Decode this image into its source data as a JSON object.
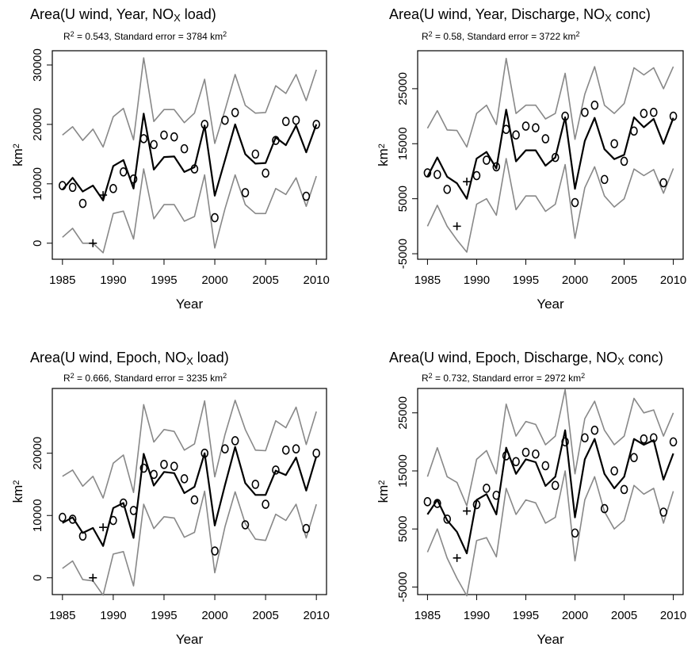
{
  "chart_data": [
    {
      "type": "line",
      "title": [
        "Area(U wind, Year, NO",
        "X",
        " load)"
      ],
      "subtitle": [
        "R",
        "2",
        " = 0.543, Standard error = 3784 km",
        "2"
      ],
      "xlabel": "Year",
      "ylabel": [
        "km",
        "2"
      ],
      "x": [
        1985,
        1986,
        1987,
        1988,
        1989,
        1990,
        1991,
        1992,
        1993,
        1994,
        1995,
        1996,
        1997,
        1998,
        1999,
        2000,
        2001,
        2002,
        2003,
        2004,
        2005,
        2006,
        2007,
        2008,
        2009,
        2010
      ],
      "xlim": [
        1984,
        2011
      ],
      "xticks": [
        1985,
        1990,
        1995,
        2000,
        2005,
        2010
      ],
      "ylim": [
        -2700,
        32400
      ],
      "yticks": [
        0,
        10000,
        20000,
        30000
      ],
      "series": [
        {
          "color": "#000000",
          "style": "line",
          "values": [
            9000,
            11000,
            8700,
            9700,
            7200,
            13000,
            14000,
            9200,
            21800,
            12400,
            14500,
            14600,
            12000,
            12800,
            19800,
            8000,
            14000,
            20000,
            15000,
            13400,
            13500,
            17800,
            16500,
            19800,
            15300,
            20000
          ]
        },
        {
          "color": "#888888",
          "style": "line",
          "values": [
            18200,
            19600,
            17300,
            19200,
            16200,
            21300,
            22700,
            17400,
            31200,
            20500,
            22500,
            22500,
            20300,
            21900,
            27600,
            16800,
            22400,
            28400,
            23200,
            21900,
            22000,
            26500,
            25200,
            28400,
            24000,
            29200
          ]
        },
        {
          "color": "#888888",
          "style": "line",
          "values": [
            1000,
            2500,
            0,
            0,
            -1600,
            5000,
            5400,
            700,
            12500,
            4100,
            6500,
            6500,
            3700,
            4500,
            11500,
            -800,
            5800,
            11500,
            6500,
            5000,
            5000,
            9200,
            8200,
            11000,
            6200,
            11300
          ]
        },
        {
          "color": "#000000",
          "style": "o",
          "values": [
            9700,
            9400,
            6700,
            null,
            null,
            9200,
            12000,
            10800,
            17600,
            16600,
            18200,
            17900,
            15900,
            12500,
            20000,
            4300,
            20700,
            22000,
            8500,
            15000,
            11800,
            17300,
            20500,
            20700,
            7900,
            20000
          ]
        },
        {
          "color": "#000000",
          "style": "+",
          "values": [
            null,
            null,
            null,
            0,
            8100,
            null,
            null,
            null,
            null,
            null,
            null,
            null,
            null,
            null,
            null,
            null,
            null,
            null,
            null,
            null,
            null,
            null,
            null,
            null,
            null,
            null
          ]
        }
      ]
    },
    {
      "type": "line",
      "title": [
        "Area(U wind, Year, Discharge, NO",
        "X",
        " conc)"
      ],
      "subtitle": [
        "R",
        "2",
        " = 0.58, Standard error = 3722 km",
        "2"
      ],
      "xlabel": "Year",
      "ylabel": [
        "km",
        "2"
      ],
      "x": [
        1985,
        1986,
        1987,
        1988,
        1989,
        1990,
        1991,
        1992,
        1993,
        1994,
        1995,
        1996,
        1997,
        1998,
        1999,
        2000,
        2001,
        2002,
        2003,
        2004,
        2005,
        2006,
        2007,
        2008,
        2009,
        2010
      ],
      "xlim": [
        1984,
        2011
      ],
      "xticks": [
        1985,
        1990,
        1995,
        2000,
        2005,
        2010
      ],
      "ylim": [
        -6000,
        31900
      ],
      "yticks": [
        -5000,
        5000,
        15000,
        25000
      ],
      "series": [
        {
          "color": "#000000",
          "style": "line",
          "values": [
            9000,
            12500,
            9000,
            7800,
            5000,
            12300,
            13500,
            10500,
            21200,
            11800,
            13800,
            13800,
            11000,
            12500,
            19800,
            6800,
            15500,
            19700,
            14000,
            12200,
            13000,
            19800,
            18000,
            19500,
            15000,
            19700
          ]
        },
        {
          "color": "#888888",
          "style": "line",
          "values": [
            17800,
            21000,
            17500,
            17400,
            14400,
            20500,
            22000,
            18500,
            30500,
            20500,
            22000,
            22000,
            19500,
            20500,
            27800,
            15800,
            24000,
            29000,
            22000,
            20500,
            22300,
            28800,
            27500,
            28800,
            25000,
            29000
          ]
        },
        {
          "color": "#888888",
          "style": "line",
          "values": [
            0,
            3800,
            0,
            -2500,
            -4700,
            4000,
            5000,
            2000,
            12300,
            3000,
            5500,
            5500,
            2700,
            4000,
            11200,
            -2200,
            7000,
            10800,
            5500,
            3500,
            5000,
            10400,
            9200,
            10300,
            6000,
            10500
          ]
        },
        {
          "color": "#000000",
          "style": "o",
          "values": [
            9700,
            9400,
            6700,
            null,
            null,
            9200,
            12000,
            10800,
            17600,
            16600,
            18200,
            17900,
            15900,
            12500,
            20000,
            4300,
            20700,
            22000,
            8500,
            15000,
            11800,
            17300,
            20500,
            20700,
            7900,
            20000
          ]
        },
        {
          "color": "#000000",
          "style": "+",
          "values": [
            null,
            null,
            null,
            0,
            8100,
            null,
            null,
            null,
            null,
            null,
            null,
            null,
            null,
            null,
            null,
            null,
            null,
            null,
            null,
            null,
            null,
            null,
            null,
            null,
            null,
            null
          ]
        }
      ]
    },
    {
      "type": "line",
      "title": [
        "Area(U wind, Epoch, NO",
        "X",
        " load)"
      ],
      "subtitle": [
        "R",
        "2",
        " = 0.666, Standard error = 3235 km",
        "2"
      ],
      "xlabel": "Year",
      "ylabel": [
        "km",
        "2"
      ],
      "x": [
        1985,
        1986,
        1987,
        1988,
        1989,
        1990,
        1991,
        1992,
        1993,
        1994,
        1995,
        1996,
        1997,
        1998,
        1999,
        2000,
        2001,
        2002,
        2003,
        2004,
        2005,
        2006,
        2007,
        2008,
        2009,
        2010
      ],
      "xlim": [
        1984,
        2011
      ],
      "xticks": [
        1985,
        1990,
        1995,
        2000,
        2005,
        2010
      ],
      "ylim": [
        -2700,
        30400
      ],
      "yticks": [
        0,
        10000,
        20000
      ],
      "series": [
        {
          "color": "#000000",
          "style": "line",
          "values": [
            8800,
            9700,
            7200,
            8000,
            5100,
            11200,
            12000,
            6400,
            19900,
            14800,
            17000,
            16800,
            13600,
            14600,
            20000,
            8400,
            14900,
            21000,
            15200,
            13300,
            13300,
            17200,
            16500,
            19300,
            14000,
            19500
          ]
        },
        {
          "color": "#888888",
          "style": "line",
          "values": [
            16300,
            17300,
            14700,
            16300,
            12800,
            18400,
            19700,
            13700,
            27800,
            21800,
            23800,
            23500,
            20500,
            21500,
            28400,
            16200,
            23000,
            28500,
            23800,
            20500,
            20400,
            25200,
            24100,
            27400,
            21400,
            26700
          ]
        },
        {
          "color": "#888888",
          "style": "line",
          "values": [
            1500,
            2700,
            -300,
            -500,
            -2800,
            3800,
            4200,
            -1300,
            11800,
            7900,
            9800,
            9600,
            6500,
            7300,
            13900,
            800,
            8200,
            13800,
            8700,
            6200,
            6000,
            10200,
            9200,
            11800,
            6400,
            11800
          ]
        },
        {
          "color": "#000000",
          "style": "o",
          "values": [
            9700,
            9400,
            6700,
            null,
            null,
            9200,
            12000,
            10800,
            17600,
            16600,
            18200,
            17900,
            15900,
            12500,
            20000,
            4300,
            20700,
            22000,
            8500,
            15000,
            11800,
            17300,
            20500,
            20700,
            7900,
            20000
          ]
        },
        {
          "color": "#000000",
          "style": "+",
          "values": [
            null,
            null,
            null,
            0,
            8100,
            null,
            null,
            null,
            null,
            null,
            null,
            null,
            null,
            null,
            null,
            null,
            null,
            null,
            null,
            null,
            null,
            null,
            null,
            null,
            null,
            null
          ]
        }
      ]
    },
    {
      "type": "line",
      "title": [
        "Area(U wind, Epoch, Discharge, NO",
        "X",
        " conc)"
      ],
      "subtitle": [
        "R",
        "2",
        " = 0.732, Standard error = 2972 km",
        "2"
      ],
      "xlabel": "Year",
      "ylabel": [
        "km",
        "2"
      ],
      "x": [
        1985,
        1986,
        1987,
        1988,
        1989,
        1990,
        1991,
        1992,
        1993,
        1994,
        1995,
        1996,
        1997,
        1998,
        1999,
        2000,
        2001,
        2002,
        2003,
        2004,
        2005,
        2006,
        2007,
        2008,
        2009,
        2010
      ],
      "xlim": [
        1984,
        2011
      ],
      "xticks": [
        1985,
        1990,
        1995,
        2000,
        2005,
        2010
      ],
      "ylim": [
        -6300,
        29200
      ],
      "yticks": [
        -5000,
        5000,
        15000,
        25000
      ],
      "series": [
        {
          "color": "#000000",
          "style": "line",
          "values": [
            7500,
            10000,
            6500,
            4500,
            800,
            10000,
            11000,
            7500,
            19000,
            14500,
            17000,
            16500,
            12400,
            14000,
            22000,
            7000,
            17000,
            20500,
            14500,
            12000,
            14000,
            20500,
            19500,
            20300,
            13500,
            18000
          ]
        },
        {
          "color": "#888888",
          "style": "line",
          "values": [
            14000,
            19000,
            14000,
            13000,
            9000,
            17000,
            18500,
            14500,
            26500,
            21000,
            23500,
            23000,
            19500,
            21000,
            29000,
            14500,
            24000,
            27000,
            22000,
            19500,
            21000,
            27500,
            25000,
            25500,
            21000,
            25000
          ]
        },
        {
          "color": "#888888",
          "style": "line",
          "values": [
            1000,
            5000,
            0,
            -3500,
            -6500,
            3000,
            3500,
            200,
            12000,
            7500,
            10000,
            9500,
            6000,
            7000,
            15000,
            -500,
            10000,
            14000,
            8000,
            5000,
            6500,
            12500,
            11000,
            12000,
            6000,
            11500
          ]
        },
        {
          "color": "#000000",
          "style": "o",
          "values": [
            9700,
            9400,
            6700,
            null,
            null,
            9200,
            12000,
            10800,
            17600,
            16600,
            18200,
            17900,
            15900,
            12500,
            20000,
            4300,
            20700,
            22000,
            8500,
            15000,
            11800,
            17300,
            20500,
            20700,
            7900,
            20000
          ]
        },
        {
          "color": "#000000",
          "style": "+",
          "values": [
            null,
            null,
            null,
            0,
            8100,
            null,
            null,
            null,
            null,
            null,
            null,
            null,
            null,
            null,
            null,
            null,
            null,
            null,
            null,
            null,
            null,
            null,
            null,
            null,
            null,
            null
          ]
        }
      ]
    }
  ]
}
